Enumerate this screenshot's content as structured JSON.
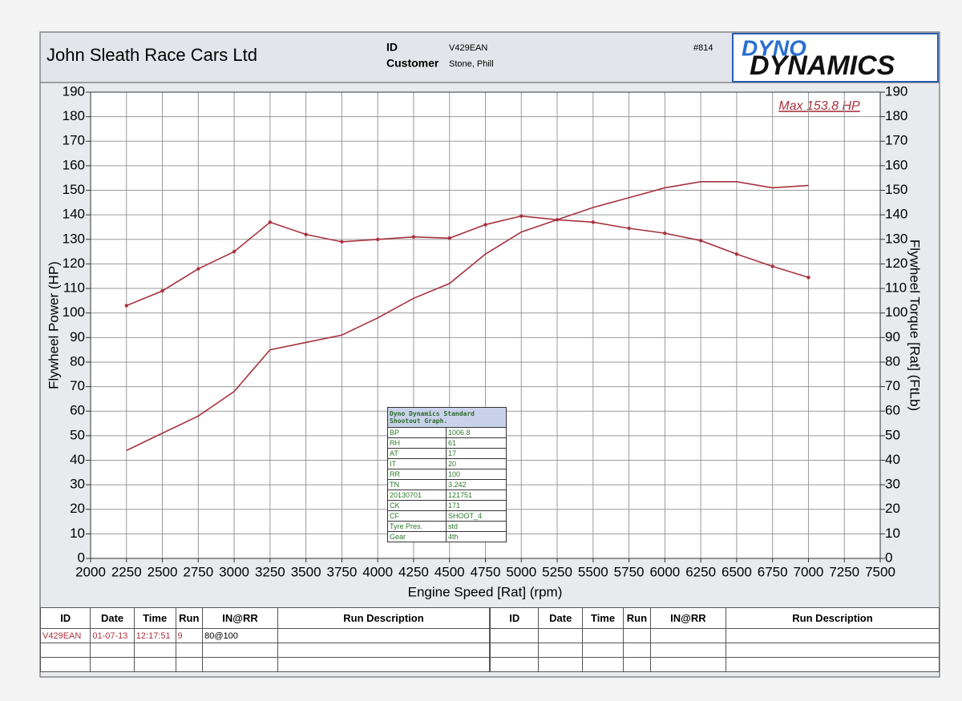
{
  "header": {
    "company": "John Sleath Race Cars Ltd",
    "id_label": "ID",
    "id_value": "V429EAN",
    "customer_label": "Customer",
    "customer_value": "Stone, Phill",
    "number": "#814",
    "logo_top": "DYNO",
    "logo_bottom": "DYNAMICS"
  },
  "chart_data": {
    "type": "line",
    "xlabel": "Engine Speed [Rat] (rpm)",
    "ylabel": "Flywheel Power (HP)",
    "y2label": "Flywheel Torque [Rat] (FtLb)",
    "annotation": "Max 153.8 HP",
    "x": [
      2250,
      2500,
      2750,
      3000,
      3250,
      3500,
      3750,
      4000,
      4250,
      4500,
      4750,
      5000,
      5250,
      5500,
      5750,
      6000,
      6250,
      6500,
      6750,
      7000
    ],
    "series": [
      {
        "color": "#a8323e",
        "values": [
          44,
          51,
          58,
          68,
          85,
          88,
          91,
          98,
          106,
          112,
          124,
          133,
          138,
          143,
          147,
          151,
          153.5,
          153.5,
          151,
          152
        ]
      },
      {
        "color": "#a8323e",
        "axis": "y2",
        "markers": true,
        "values": [
          103,
          109,
          118,
          125,
          137,
          132,
          129,
          130,
          131,
          130.5,
          136,
          139.5,
          138,
          137,
          134.5,
          132.5,
          129.5,
          124,
          119,
          114.5
        ]
      }
    ],
    "xlim": [
      2000,
      7500
    ],
    "xticks": [
      2000,
      2250,
      2500,
      2750,
      3000,
      3250,
      3500,
      3750,
      4000,
      4250,
      4500,
      4750,
      5000,
      5250,
      5500,
      5750,
      6000,
      6250,
      6500,
      6750,
      7000,
      7250,
      7500
    ],
    "ylim": [
      0,
      190
    ],
    "yticks": [
      0,
      10,
      20,
      30,
      40,
      50,
      60,
      70,
      80,
      90,
      100,
      110,
      120,
      130,
      140,
      150,
      160,
      170,
      180,
      190
    ],
    "y2lim": [
      0,
      190
    ],
    "y2ticks": [
      0,
      10,
      20,
      30,
      40,
      50,
      60,
      70,
      80,
      90,
      100,
      110,
      120,
      130,
      140,
      150,
      160,
      170,
      180,
      190
    ],
    "grid": true
  },
  "info_box": {
    "title": "Dyno Dynamics Standard Shootout Graph.",
    "rows": [
      [
        "BP",
        "1006.8"
      ],
      [
        "RH",
        "61"
      ],
      [
        "AT",
        "17"
      ],
      [
        "IT",
        "20"
      ],
      [
        "RR",
        "100"
      ],
      [
        "TN",
        "3.242"
      ],
      [
        "20130701",
        "121751"
      ],
      [
        "CK",
        "171"
      ],
      [
        "CF",
        "SHOOT_4"
      ],
      [
        "Tyre Pres.",
        "std"
      ],
      [
        "Gear",
        "4th"
      ]
    ]
  },
  "run_table": {
    "columns": [
      "ID",
      "Date",
      "Time",
      "Run",
      "IN@RR",
      "Run Description"
    ],
    "rows": [
      [
        "V429EAN",
        "01-07-13",
        "12:17:51",
        "9",
        "80@100"
      ]
    ]
  }
}
